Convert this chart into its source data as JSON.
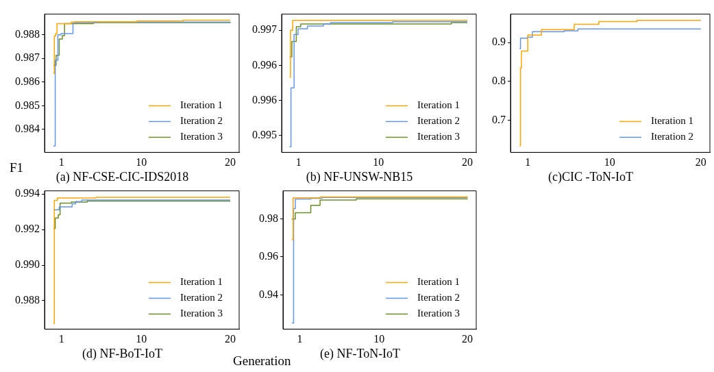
{
  "chart_data": [
    {
      "type": "step",
      "title": "(a) NF-CSE-CIC-IDS2018",
      "ylabel": "F1",
      "legend": "bottom right",
      "xlim": [
        -0.9,
        21
      ],
      "xticks": [
        1,
        10,
        20
      ],
      "ylim": [
        0.98303,
        0.98887
      ],
      "yticks": [
        0.984,
        0.985,
        0.986,
        0.987,
        0.988
      ],
      "series": [
        {
          "name": "Iteration 1",
          "color": "#ffa500",
          "x": [
            0.1,
            0.2,
            0.35,
            0.5,
            2.1,
            2.5,
            9.5,
            14.7,
            20
          ],
          "values": [
            0.98636,
            0.98795,
            0.98805,
            0.98847,
            0.98853,
            0.98855,
            0.98858,
            0.98861,
            0.98861
          ]
        },
        {
          "name": "Iteration 2",
          "color": "#6495ed",
          "x": [
            0.1,
            0.3,
            0.6,
            0.95,
            2.3,
            5,
            20
          ],
          "values": [
            0.9833,
            0.98692,
            0.988,
            0.98805,
            0.98851,
            0.98853,
            0.98855
          ]
        },
        {
          "name": "Iteration 3",
          "color": "#6b8e23",
          "x": [
            0.1,
            0.4,
            0.75,
            1.1,
            1.35,
            4.6,
            20
          ],
          "values": [
            0.9867,
            0.98713,
            0.98782,
            0.98796,
            0.98847,
            0.98851,
            0.98853
          ]
        }
      ]
    },
    {
      "type": "step",
      "title": "(b) NF-UNSW-NB15",
      "legend": "bottom right",
      "xlim": [
        -0.9,
        21
      ],
      "xticks": [
        1,
        10,
        20
      ],
      "ylim": [
        0.99526,
        0.99723
      ],
      "yticks": [
        {
          "value": 0.9955,
          "label": "0.995"
        },
        {
          "value": 0.996,
          "label": "0.996"
        },
        {
          "value": 0.9965,
          "label": "0.996"
        },
        {
          "value": 0.997,
          "label": "0.997"
        }
      ],
      "series": [
        {
          "name": "Iteration 1",
          "color": "#ffa500",
          "x": [
            0,
            0.1,
            0.35,
            20
          ],
          "values": [
            0.99633,
            0.997,
            0.99714,
            0.99714
          ]
        },
        {
          "name": "Iteration 2",
          "color": "#6495ed",
          "x": [
            0,
            0.15,
            0.5,
            0.95,
            2,
            3.8,
            4.6,
            11.6,
            20
          ],
          "values": [
            0.99534,
            0.99618,
            0.99694,
            0.99702,
            0.99706,
            0.99709,
            0.99711,
            0.99712,
            0.99712
          ]
        },
        {
          "name": "Iteration 3",
          "color": "#6b8e23",
          "x": [
            0,
            0.25,
            0.75,
            1.25,
            18.2,
            20
          ],
          "values": [
            0.99662,
            0.99684,
            0.99705,
            0.99709,
            0.99711,
            0.99711
          ]
        }
      ]
    },
    {
      "type": "step",
      "title": "(c)CIC -ToN-IoT",
      "legend": "bottom right",
      "xlim": [
        -0.9,
        21
      ],
      "xticks": [
        1,
        10,
        20
      ],
      "ylim": [
        0.618,
        0.973
      ],
      "yticks": [
        0.7,
        0.8,
        0.9
      ],
      "series": [
        {
          "name": "Iteration 1",
          "color": "#ffa500",
          "x": [
            0.1,
            0.2,
            0.3,
            1,
            2.5,
            6.1,
            8.8,
            13,
            20
          ],
          "values": [
            0.635,
            0.835,
            0.878,
            0.919,
            0.933,
            0.947,
            0.954,
            0.957,
            0.957
          ]
        },
        {
          "name": "Iteration 2",
          "color": "#6495ed",
          "x": [
            0.1,
            0.2,
            0.95,
            1.5,
            5,
            6.5,
            20
          ],
          "values": [
            0.884,
            0.911,
            0.914,
            0.928,
            0.93,
            0.935,
            0.935
          ]
        }
      ]
    },
    {
      "type": "step",
      "title": "(d) NF-BoT-IoT",
      "xlabel": "Generation",
      "legend": "bottom right",
      "xlim": [
        -0.9,
        21
      ],
      "xticks": [
        1,
        10,
        20
      ],
      "ylim": [
        0.9864,
        0.99418
      ],
      "yticks": [
        0.988,
        {
          "value": 0.99,
          "label": "0.990"
        },
        0.992,
        0.994
      ],
      "series": [
        {
          "name": "Iteration 1",
          "color": "#ffa500",
          "x": [
            0.1,
            0.2,
            0.55,
            4.9,
            20
          ],
          "values": [
            0.98671,
            0.99364,
            0.99378,
            0.99382,
            0.99382
          ]
        },
        {
          "name": "Iteration 2",
          "color": "#6495ed",
          "x": [
            0.1,
            0.75,
            2.2,
            2.6,
            3.3,
            20
          ],
          "values": [
            0.99311,
            0.99328,
            0.99345,
            0.99358,
            0.99366,
            0.99366
          ]
        },
        {
          "name": "Iteration 3",
          "color": "#6b8e23",
          "x": [
            0.1,
            0.3,
            0.65,
            0.85,
            2.1,
            3.9,
            20
          ],
          "values": [
            0.99206,
            0.99265,
            0.99283,
            0.99349,
            0.99355,
            0.99361,
            0.99361
          ]
        }
      ]
    },
    {
      "type": "step",
      "title": "(e) NF-ToN-IoT",
      "legend": "bottom right",
      "xlim": [
        -0.9,
        21
      ],
      "xticks": [
        1,
        10,
        20
      ],
      "ylim": [
        0.922,
        0.99466
      ],
      "yticks": [
        0.94,
        0.96,
        0.98
      ],
      "series": [
        {
          "name": "Iteration 1",
          "color": "#ffa500",
          "x": [
            0.1,
            0.25,
            3.3,
            20
          ],
          "values": [
            0.969,
            0.991,
            0.9915,
            0.9917
          ]
        },
        {
          "name": "Iteration 2",
          "color": "#6495ed",
          "x": [
            0.1,
            0.3,
            0.5,
            2.25,
            3.5,
            20
          ],
          "values": [
            0.9252,
            0.9853,
            0.9904,
            0.9907,
            0.9912,
            0.9912
          ]
        },
        {
          "name": "Iteration 3",
          "color": "#6b8e23",
          "x": [
            0.1,
            0.5,
            2.25,
            3.3,
            7.4,
            20
          ],
          "values": [
            0.9798,
            0.9832,
            0.987,
            0.9898,
            0.9905,
            0.9906
          ]
        }
      ]
    }
  ]
}
